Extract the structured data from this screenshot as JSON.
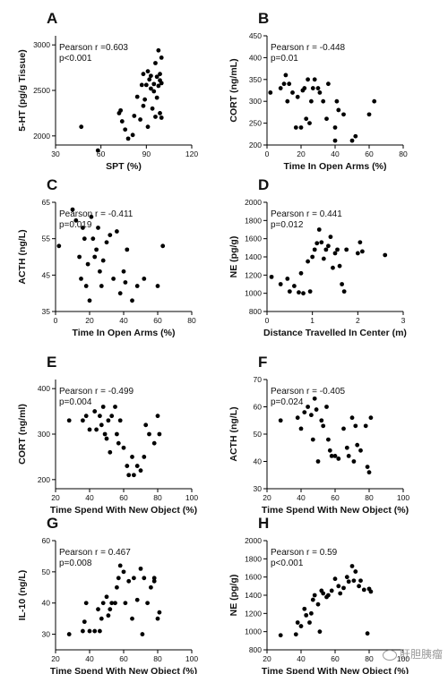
{
  "watermark": {
    "text": "肝胆胰瘤",
    "icon": "wechat-icon"
  },
  "chart_data": [
    {
      "id": "A",
      "letter": "A",
      "type": "scatter",
      "ylabel": "5-HT (pg/g Tissue)",
      "xlabel": "SPT (%)",
      "xlim": [
        30,
        120
      ],
      "ylim": [
        1900,
        3100
      ],
      "xticks": [
        30,
        60,
        90,
        120
      ],
      "yticks": [
        2000,
        2500,
        3000
      ],
      "annotation": [
        "Pearson r =0.603",
        "p<0.001"
      ],
      "points": [
        [
          47,
          2100
        ],
        [
          58,
          1840
        ],
        [
          72,
          2250
        ],
        [
          73,
          2280
        ],
        [
          74,
          2160
        ],
        [
          76,
          2070
        ],
        [
          78,
          1970
        ],
        [
          81,
          2010
        ],
        [
          82,
          2220
        ],
        [
          84,
          2430
        ],
        [
          86,
          2180
        ],
        [
          87,
          2560
        ],
        [
          88,
          2330
        ],
        [
          88,
          2680
        ],
        [
          89,
          2400
        ],
        [
          90,
          2560
        ],
        [
          91,
          2100
        ],
        [
          91,
          2710
        ],
        [
          92,
          2620
        ],
        [
          93,
          2520
        ],
        [
          93,
          2660
        ],
        [
          94,
          2300
        ],
        [
          95,
          2490
        ],
        [
          95,
          2570
        ],
        [
          96,
          2210
        ],
        [
          96,
          2800
        ],
        [
          97,
          2420
        ],
        [
          97,
          2650
        ],
        [
          98,
          2550
        ],
        [
          98,
          2940
        ],
        [
          99,
          2250
        ],
        [
          99,
          2610
        ],
        [
          99,
          2680
        ],
        [
          100,
          2200
        ],
        [
          100,
          2860
        ],
        [
          100,
          2580
        ]
      ]
    },
    {
      "id": "B",
      "letter": "B",
      "type": "scatter",
      "ylabel": "CORT (ng/mL)",
      "xlabel": "Time In Open Arms (%)",
      "xlim": [
        0,
        80
      ],
      "ylim": [
        200,
        450
      ],
      "xticks": [
        0,
        20,
        40,
        60,
        80
      ],
      "yticks": [
        200,
        250,
        300,
        350,
        400,
        450
      ],
      "annotation": [
        "Pearson r = -0.448",
        "p=0.01"
      ],
      "points": [
        [
          2,
          320
        ],
        [
          8,
          330
        ],
        [
          10,
          340
        ],
        [
          11,
          360
        ],
        [
          12,
          300
        ],
        [
          13,
          340
        ],
        [
          15,
          320
        ],
        [
          17,
          240
        ],
        [
          18,
          310
        ],
        [
          20,
          240
        ],
        [
          21,
          325
        ],
        [
          22,
          330
        ],
        [
          23,
          260
        ],
        [
          24,
          350
        ],
        [
          25,
          250
        ],
        [
          26,
          300
        ],
        [
          27,
          330
        ],
        [
          28,
          350
        ],
        [
          30,
          330
        ],
        [
          31,
          320
        ],
        [
          33,
          300
        ],
        [
          35,
          260
        ],
        [
          36,
          340
        ],
        [
          40,
          210
        ],
        [
          40,
          240
        ],
        [
          41,
          300
        ],
        [
          42,
          280
        ],
        [
          45,
          270
        ],
        [
          50,
          210
        ],
        [
          52,
          220
        ],
        [
          60,
          270
        ],
        [
          63,
          300
        ]
      ]
    },
    {
      "id": "C",
      "letter": "C",
      "type": "scatter",
      "ylabel": "ACTH (ng/L)",
      "xlabel": "Time In Open Arms (%)",
      "xlim": [
        0,
        80
      ],
      "ylim": [
        35,
        65
      ],
      "xticks": [
        0,
        20,
        40,
        60,
        80
      ],
      "yticks": [
        35,
        45,
        55,
        65
      ],
      "annotation": [
        "Pearson r = -0.411",
        "p=0.019"
      ],
      "points": [
        [
          2,
          53
        ],
        [
          10,
          63
        ],
        [
          12,
          60
        ],
        [
          14,
          50
        ],
        [
          15,
          44
        ],
        [
          16,
          58
        ],
        [
          17,
          55
        ],
        [
          18,
          42
        ],
        [
          19,
          48
        ],
        [
          20,
          38
        ],
        [
          21,
          61
        ],
        [
          22,
          55
        ],
        [
          23,
          50
        ],
        [
          24,
          52
        ],
        [
          25,
          58
        ],
        [
          26,
          46
        ],
        [
          27,
          42
        ],
        [
          28,
          49
        ],
        [
          30,
          54
        ],
        [
          32,
          56
        ],
        [
          34,
          44
        ],
        [
          36,
          57
        ],
        [
          38,
          40
        ],
        [
          40,
          46
        ],
        [
          41,
          43
        ],
        [
          42,
          52
        ],
        [
          45,
          38
        ],
        [
          48,
          42
        ],
        [
          52,
          44
        ],
        [
          60,
          42
        ],
        [
          63,
          53
        ]
      ]
    },
    {
      "id": "D",
      "letter": "D",
      "type": "scatter",
      "ylabel": "NE (pg/g)",
      "xlabel": "Distance Travelled In Center (m)",
      "xlim": [
        0,
        3
      ],
      "ylim": [
        800,
        2000
      ],
      "xticks": [
        0,
        1,
        2,
        3
      ],
      "yticks": [
        800,
        1000,
        1200,
        1400,
        1600,
        1800,
        2000
      ],
      "annotation": [
        "Pearson r = 0.441",
        "p=0.012"
      ],
      "points": [
        [
          0.1,
          1180
        ],
        [
          0.3,
          1100
        ],
        [
          0.45,
          1160
        ],
        [
          0.5,
          1020
        ],
        [
          0.6,
          1080
        ],
        [
          0.7,
          1010
        ],
        [
          0.75,
          1220
        ],
        [
          0.8,
          1000
        ],
        [
          0.9,
          1350
        ],
        [
          0.95,
          1020
        ],
        [
          1.0,
          1400
        ],
        [
          1.05,
          1480
        ],
        [
          1.1,
          1550
        ],
        [
          1.15,
          1700
        ],
        [
          1.2,
          1560
        ],
        [
          1.25,
          1380
        ],
        [
          1.3,
          1480
        ],
        [
          1.35,
          1520
        ],
        [
          1.4,
          1620
        ],
        [
          1.45,
          1280
        ],
        [
          1.5,
          1440
        ],
        [
          1.55,
          1480
        ],
        [
          1.6,
          1300
        ],
        [
          1.65,
          1100
        ],
        [
          1.7,
          1020
        ],
        [
          1.75,
          1480
        ],
        [
          2.0,
          1440
        ],
        [
          2.05,
          1560
        ],
        [
          2.1,
          1460
        ],
        [
          2.6,
          1420
        ]
      ]
    },
    {
      "id": "E",
      "letter": "E",
      "type": "scatter",
      "ylabel": "CORT (ng/ml)",
      "xlabel": "Time Spend With New Object (%)",
      "xlim": [
        20,
        100
      ],
      "ylim": [
        180,
        420
      ],
      "xticks": [
        20,
        40,
        60,
        80,
        100
      ],
      "yticks": [
        200,
        300,
        400
      ],
      "annotation": [
        "Pearson r = -0.499",
        "p=0.004"
      ],
      "points": [
        [
          28,
          330
        ],
        [
          36,
          330
        ],
        [
          38,
          340
        ],
        [
          40,
          310
        ],
        [
          43,
          350
        ],
        [
          44,
          310
        ],
        [
          46,
          340
        ],
        [
          47,
          320
        ],
        [
          48,
          360
        ],
        [
          49,
          300
        ],
        [
          50,
          290
        ],
        [
          51,
          330
        ],
        [
          52,
          260
        ],
        [
          53,
          340
        ],
        [
          55,
          360
        ],
        [
          56,
          300
        ],
        [
          57,
          280
        ],
        [
          58,
          330
        ],
        [
          60,
          270
        ],
        [
          62,
          230
        ],
        [
          63,
          210
        ],
        [
          65,
          250
        ],
        [
          66,
          210
        ],
        [
          68,
          230
        ],
        [
          70,
          220
        ],
        [
          72,
          250
        ],
        [
          73,
          320
        ],
        [
          75,
          300
        ],
        [
          78,
          280
        ],
        [
          80,
          340
        ],
        [
          81,
          300
        ]
      ]
    },
    {
      "id": "F",
      "letter": "F",
      "type": "scatter",
      "ylabel": "ACTH (ng/L)",
      "xlabel": "Time Spend With New Object (%)",
      "xlim": [
        20,
        100
      ],
      "ylim": [
        30,
        70
      ],
      "xticks": [
        20,
        40,
        60,
        80,
        100
      ],
      "yticks": [
        30,
        40,
        50,
        60,
        70
      ],
      "annotation": [
        "Pearson r = -0.405",
        "p=0.024"
      ],
      "points": [
        [
          28,
          55
        ],
        [
          38,
          56
        ],
        [
          40,
          52
        ],
        [
          42,
          58
        ],
        [
          44,
          60
        ],
        [
          46,
          57
        ],
        [
          47,
          48
        ],
        [
          48,
          63
        ],
        [
          49,
          59
        ],
        [
          50,
          40
        ],
        [
          52,
          55
        ],
        [
          53,
          53
        ],
        [
          55,
          60
        ],
        [
          56,
          48
        ],
        [
          57,
          44
        ],
        [
          58,
          42
        ],
        [
          60,
          42
        ],
        [
          62,
          41
        ],
        [
          65,
          52
        ],
        [
          67,
          45
        ],
        [
          68,
          42
        ],
        [
          70,
          56
        ],
        [
          71,
          40
        ],
        [
          72,
          53
        ],
        [
          73,
          46
        ],
        [
          75,
          44
        ],
        [
          78,
          53
        ],
        [
          79,
          38
        ],
        [
          80,
          36
        ],
        [
          81,
          56
        ]
      ]
    },
    {
      "id": "G",
      "letter": "G",
      "type": "scatter",
      "ylabel": "IL-10 (ng/L)",
      "xlabel": "Time Spend With New Object (%)",
      "xlim": [
        20,
        100
      ],
      "ylim": [
        25,
        60
      ],
      "xticks": [
        20,
        40,
        60,
        80,
        100
      ],
      "yticks": [
        30,
        40,
        50,
        60
      ],
      "annotation": [
        "Pearson r = 0.467",
        "p=0.008"
      ],
      "points": [
        [
          28,
          30
        ],
        [
          36,
          31
        ],
        [
          37,
          34
        ],
        [
          38,
          40
        ],
        [
          40,
          31
        ],
        [
          43,
          31
        ],
        [
          45,
          38
        ],
        [
          46,
          31
        ],
        [
          47,
          35
        ],
        [
          48,
          40
        ],
        [
          50,
          42
        ],
        [
          51,
          36
        ],
        [
          52,
          38
        ],
        [
          53,
          40
        ],
        [
          55,
          40
        ],
        [
          56,
          45
        ],
        [
          57,
          48
        ],
        [
          58,
          52
        ],
        [
          60,
          50
        ],
        [
          61,
          40
        ],
        [
          63,
          47
        ],
        [
          65,
          35
        ],
        [
          66,
          48
        ],
        [
          68,
          41
        ],
        [
          70,
          51
        ],
        [
          71,
          30
        ],
        [
          72,
          48
        ],
        [
          74,
          40
        ],
        [
          76,
          45
        ],
        [
          78,
          48
        ],
        [
          80,
          35
        ],
        [
          81,
          37
        ],
        [
          78,
          47
        ]
      ]
    },
    {
      "id": "H",
      "letter": "H",
      "type": "scatter",
      "ylabel": "NE (pg/g)",
      "xlabel": "Time Spend With New Object (%)",
      "xlim": [
        20,
        100
      ],
      "ylim": [
        800,
        2000
      ],
      "xticks": [
        20,
        40,
        60,
        80,
        100
      ],
      "yticks": [
        800,
        1000,
        1200,
        1400,
        1600,
        1800,
        2000
      ],
      "annotation": [
        "Pearson r = 0.59",
        "p<0.001"
      ],
      "points": [
        [
          28,
          960
        ],
        [
          37,
          970
        ],
        [
          38,
          1100
        ],
        [
          40,
          1060
        ],
        [
          42,
          1250
        ],
        [
          43,
          1180
        ],
        [
          45,
          1100
        ],
        [
          46,
          1200
        ],
        [
          47,
          1350
        ],
        [
          48,
          1400
        ],
        [
          50,
          1300
        ],
        [
          51,
          1000
        ],
        [
          52,
          1450
        ],
        [
          53,
          1420
        ],
        [
          55,
          1380
        ],
        [
          56,
          1400
        ],
        [
          58,
          1450
        ],
        [
          60,
          1580
        ],
        [
          62,
          1500
        ],
        [
          63,
          1420
        ],
        [
          65,
          1480
        ],
        [
          67,
          1600
        ],
        [
          68,
          1550
        ],
        [
          70,
          1720
        ],
        [
          71,
          1560
        ],
        [
          72,
          1660
        ],
        [
          74,
          1500
        ],
        [
          75,
          1560
        ],
        [
          77,
          1460
        ],
        [
          79,
          980
        ],
        [
          80,
          1470
        ],
        [
          81,
          1440
        ]
      ]
    }
  ]
}
